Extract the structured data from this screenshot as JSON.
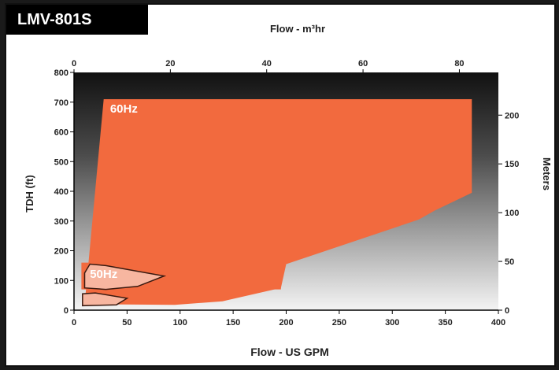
{
  "model_label": "LMV-801S",
  "chart_data": {
    "type": "area",
    "title": "LMV-801S",
    "xlabel": "Flow - US GPM",
    "x2label": "Flow - m³hr",
    "ylabel": "TDH (ft)",
    "y2label": "Meters",
    "xlim": [
      0,
      400
    ],
    "ylim": [
      0,
      800
    ],
    "x2lim": [
      0,
      88.1
    ],
    "y2lim": [
      0,
      243.8
    ],
    "x_ticks": [
      "0",
      "50",
      "100",
      "150",
      "200",
      "250",
      "300",
      "350",
      "400"
    ],
    "y_ticks": [
      "0",
      "100",
      "200",
      "300",
      "400",
      "500",
      "600",
      "700",
      "800"
    ],
    "x2_ticks": [
      "0",
      "20",
      "40",
      "60",
      "80"
    ],
    "y2_ticks": [
      "0",
      "50",
      "100",
      "150",
      "200"
    ],
    "background": "dark-to-light vertical gradient",
    "colors": {
      "hz60": "#f26a3e",
      "hz50": "#f7b6a0"
    },
    "series": [
      {
        "name": "60Hz",
        "color": "#f26a3e",
        "polygon": [
          [
            10,
            20
          ],
          [
            28,
            710
          ],
          [
            375,
            710
          ],
          [
            375,
            395
          ],
          [
            340,
            335
          ],
          [
            325,
            305
          ],
          [
            200,
            155
          ],
          [
            195,
            75
          ],
          [
            140,
            30
          ],
          [
            95,
            18
          ]
        ]
      },
      {
        "name": "60Hz",
        "color": "#f26a3e",
        "polygon": [
          [
            7,
            160
          ],
          [
            195,
            160
          ],
          [
            195,
            70
          ],
          [
            7,
            70
          ]
        ]
      },
      {
        "name": "50Hz",
        "color": "#f7b6a0",
        "polygon": [
          [
            10,
            125
          ],
          [
            15,
            155
          ],
          [
            30,
            150
          ],
          [
            85,
            115
          ],
          [
            60,
            80
          ],
          [
            30,
            70
          ],
          [
            10,
            75
          ]
        ]
      },
      {
        "name": "50Hz",
        "color": "#f7b6a0",
        "polygon": [
          [
            8,
            15
          ],
          [
            8,
            55
          ],
          [
            20,
            58
          ],
          [
            50,
            40
          ],
          [
            40,
            18
          ]
        ]
      }
    ],
    "labels": [
      {
        "text": "60Hz",
        "x": 34,
        "y": 665
      },
      {
        "text": "50Hz",
        "x": 15,
        "y": 108
      }
    ]
  }
}
